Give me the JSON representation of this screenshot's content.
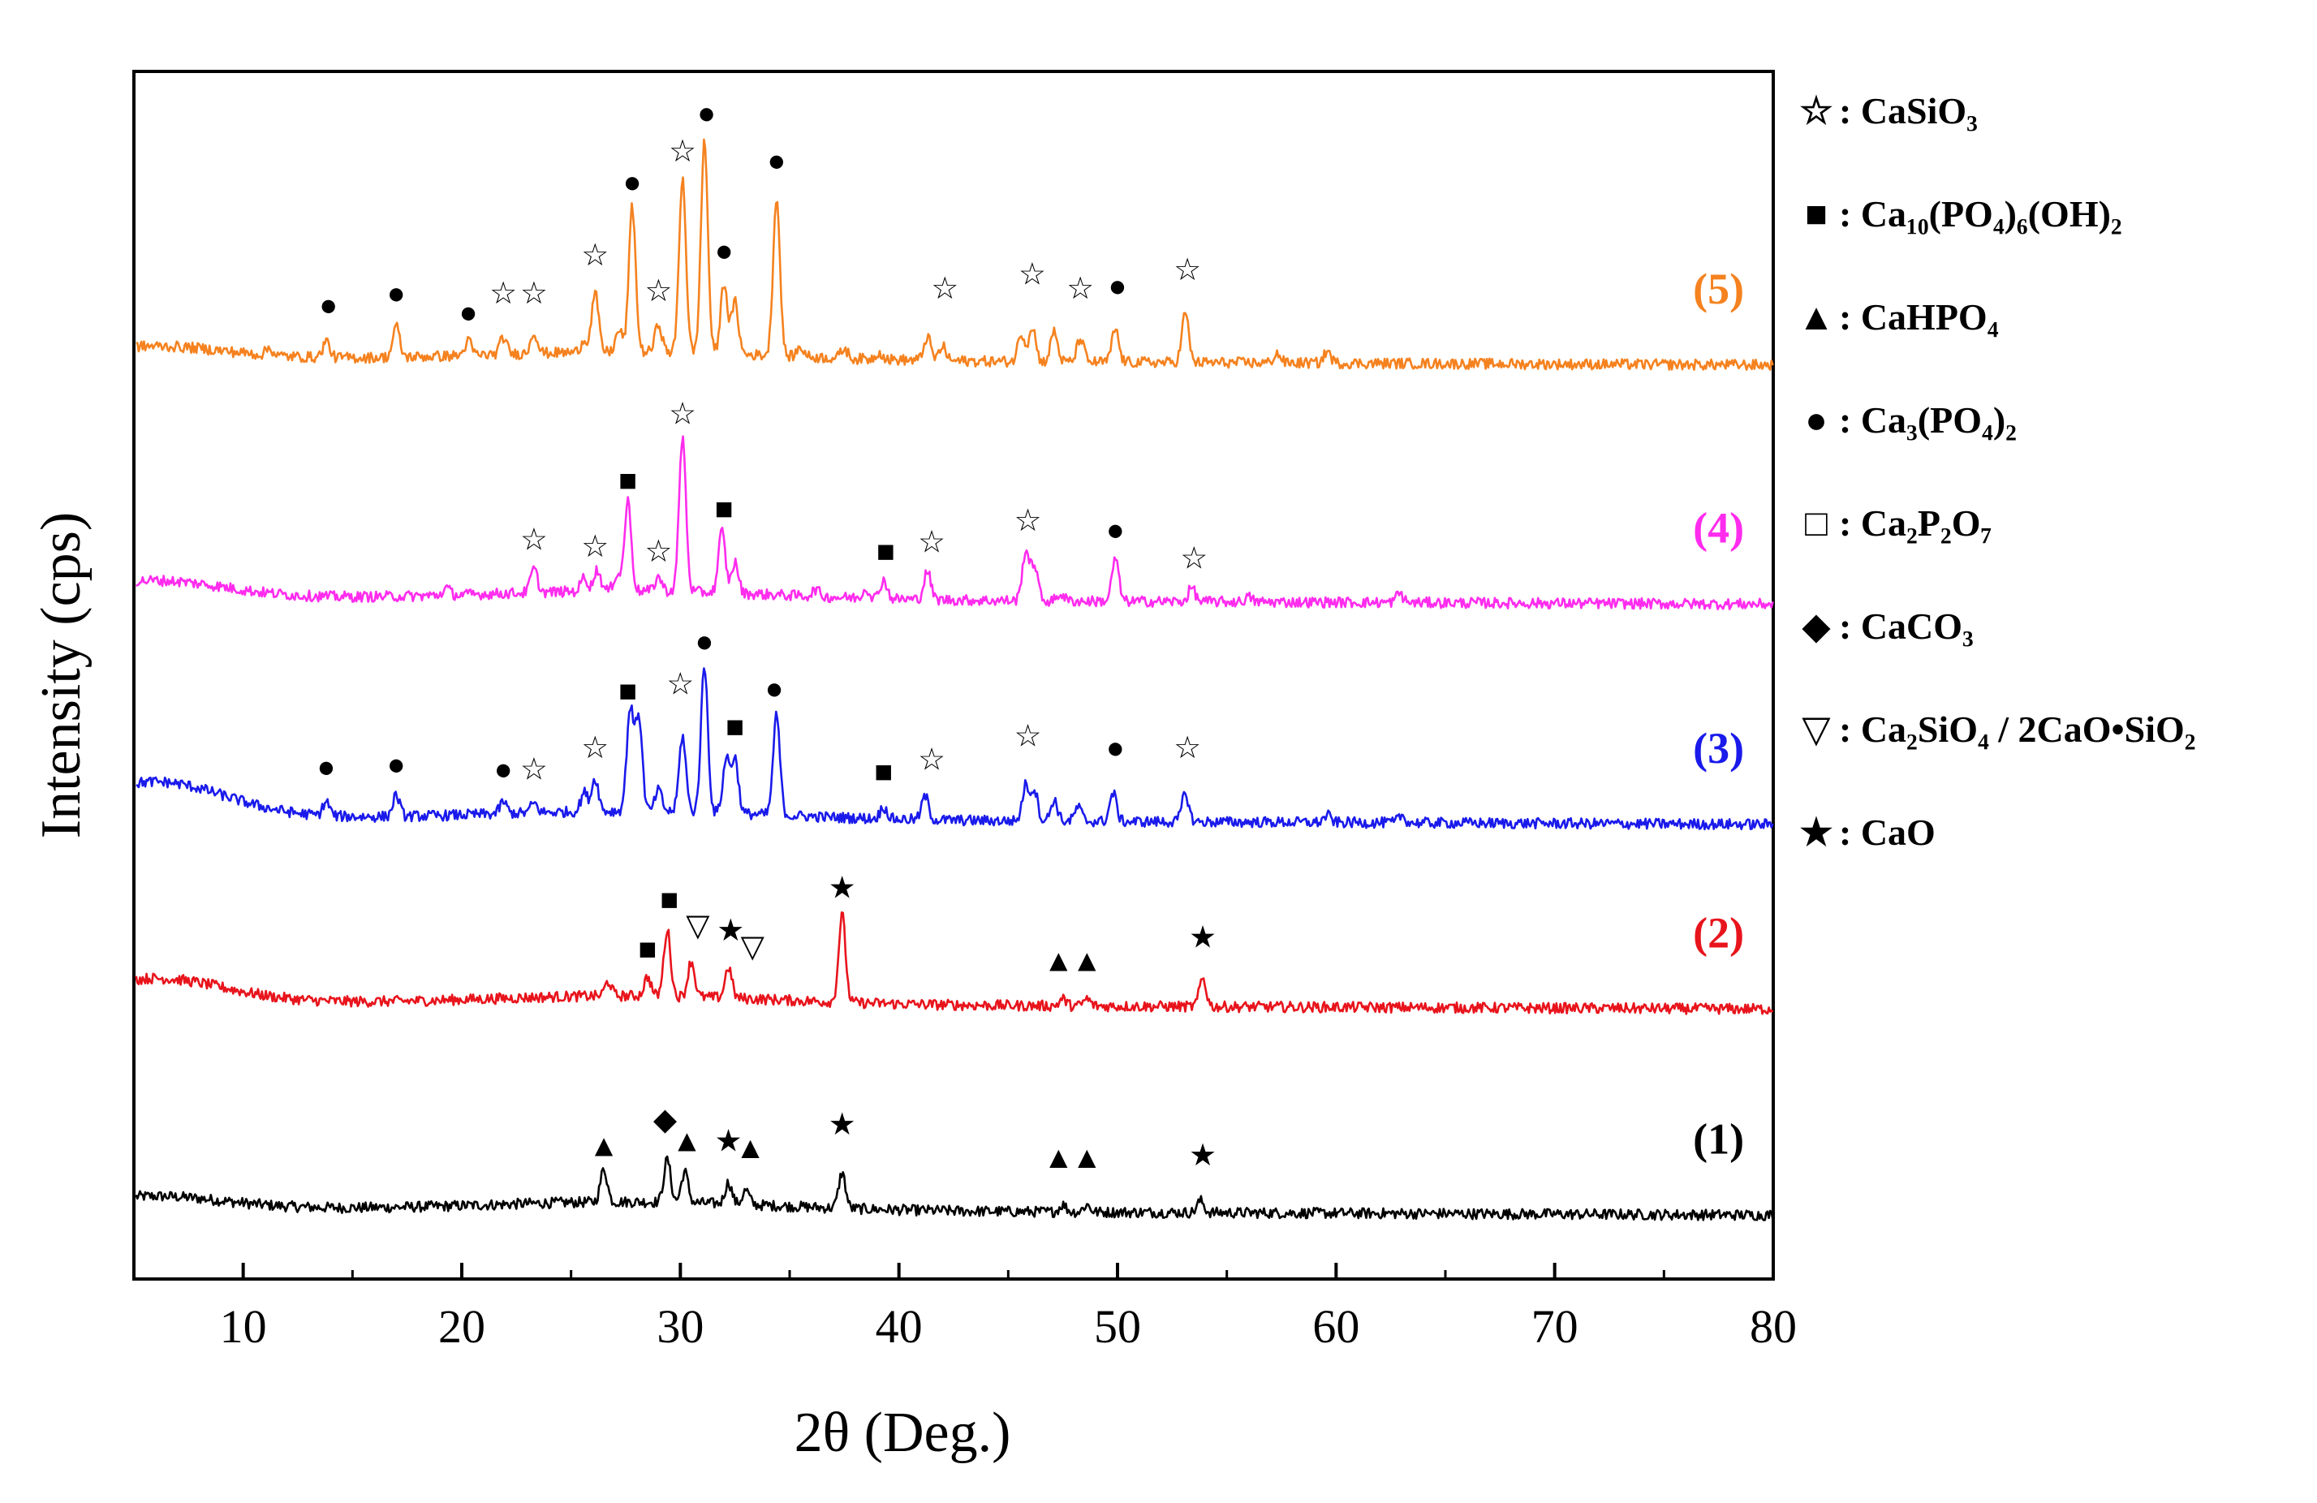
{
  "chart_data": {
    "type": "line",
    "title": "",
    "xlabel": "2θ (Deg.)",
    "ylabel": "Intensity (cps)",
    "xlim": [
      5,
      80
    ],
    "xticks": [
      10,
      20,
      30,
      40,
      50,
      60,
      70,
      80
    ],
    "grid": false,
    "y_ticks_shown": false,
    "legend_position": "right, outside plot",
    "series": [
      {
        "name": "(1)",
        "color": "#000000",
        "baseline": 0.0,
        "start_offset": 0.5,
        "peaks": [
          [
            26.5,
            1.4
          ],
          [
            29.4,
            1.8
          ],
          [
            30.2,
            1.3
          ],
          [
            32.2,
            0.9
          ],
          [
            33.0,
            0.6
          ],
          [
            37.4,
            1.5
          ],
          [
            47.5,
            0.3
          ],
          [
            48.6,
            0.3
          ],
          [
            53.8,
            0.5
          ]
        ],
        "markers": [
          {
            "symbol": "triangle",
            "x": 26.5,
            "h": 2.2
          },
          {
            "symbol": "diamond",
            "x": 29.3,
            "h": 3.3
          },
          {
            "symbol": "triangle",
            "x": 30.3,
            "h": 2.4
          },
          {
            "symbol": "star",
            "x": 32.2,
            "h": 2.4
          },
          {
            "symbol": "triangle",
            "x": 33.2,
            "h": 2.1
          },
          {
            "symbol": "star",
            "x": 37.4,
            "h": 3.1
          },
          {
            "symbol": "triangle",
            "x": 47.3,
            "h": 1.7
          },
          {
            "symbol": "triangle",
            "x": 48.6,
            "h": 1.7
          },
          {
            "symbol": "star",
            "x": 53.9,
            "h": 1.8
          }
        ]
      },
      {
        "name": "(2)",
        "color": "#e8141c",
        "baseline": 8.7,
        "start_offset": 1.0,
        "peaks": [
          [
            26.7,
            0.6
          ],
          [
            28.5,
            0.8
          ],
          [
            29.4,
            2.8
          ],
          [
            30.5,
            1.5
          ],
          [
            32.2,
            1.3
          ],
          [
            37.4,
            3.7
          ],
          [
            47.5,
            0.3
          ],
          [
            48.6,
            0.3
          ],
          [
            53.9,
            1.2
          ]
        ],
        "markers": [
          {
            "symbol": "square",
            "x": 28.5,
            "h": 1.8
          },
          {
            "symbol": "square",
            "x": 29.5,
            "h": 3.9
          },
          {
            "symbol": "triangle-down",
            "x": 30.8,
            "h": 2.8
          },
          {
            "symbol": "star",
            "x": 32.3,
            "h": 2.6
          },
          {
            "symbol": "triangle-down",
            "x": 33.3,
            "h": 1.9
          },
          {
            "symbol": "star",
            "x": 37.4,
            "h": 4.4
          },
          {
            "symbol": "triangle",
            "x": 47.3,
            "h": 1.3
          },
          {
            "symbol": "triangle",
            "x": 48.6,
            "h": 1.3
          },
          {
            "symbol": "star",
            "x": 53.9,
            "h": 2.3
          }
        ]
      },
      {
        "name": "(3)",
        "color": "#1a1aeb",
        "baseline": 16.5,
        "start_offset": 1.5,
        "peaks": [
          [
            13.8,
            0.6
          ],
          [
            17.0,
            0.9
          ],
          [
            21.9,
            0.5
          ],
          [
            23.3,
            0.4
          ],
          [
            25.6,
            0.8
          ],
          [
            26.1,
            1.4
          ],
          [
            27.7,
            4.3
          ],
          [
            28.1,
            4.0
          ],
          [
            29.0,
            0.9
          ],
          [
            30.1,
            3.2
          ],
          [
            31.1,
            6.2
          ],
          [
            32.1,
            2.3
          ],
          [
            32.5,
            2.3
          ],
          [
            34.4,
            4.2
          ],
          [
            39.3,
            0.5
          ],
          [
            41.2,
            1.0
          ],
          [
            45.8,
            1.5
          ],
          [
            46.2,
            1.3
          ],
          [
            47.1,
            0.9
          ],
          [
            48.2,
            0.6
          ],
          [
            49.8,
            1.2
          ],
          [
            53.1,
            1.2
          ],
          [
            59.6,
            0.3
          ],
          [
            63.0,
            0.3
          ]
        ],
        "markers": [
          {
            "symbol": "circle",
            "x": 13.8,
            "h": 1.7
          },
          {
            "symbol": "circle",
            "x": 17.0,
            "h": 1.8
          },
          {
            "symbol": "circle",
            "x": 21.9,
            "h": 1.6
          },
          {
            "symbol": "star-open",
            "x": 23.3,
            "h": 1.6
          },
          {
            "symbol": "star-open",
            "x": 26.1,
            "h": 2.5
          },
          {
            "symbol": "square",
            "x": 27.6,
            "h": 4.9
          },
          {
            "symbol": "star-open",
            "x": 30.0,
            "h": 5.2
          },
          {
            "symbol": "circle",
            "x": 31.1,
            "h": 7.0
          },
          {
            "symbol": "square",
            "x": 32.5,
            "h": 3.4
          },
          {
            "symbol": "circle",
            "x": 34.3,
            "h": 5.0
          },
          {
            "symbol": "square",
            "x": 39.3,
            "h": 1.5
          },
          {
            "symbol": "star-open",
            "x": 41.5,
            "h": 2.0
          },
          {
            "symbol": "star-open",
            "x": 45.9,
            "h": 3.0
          },
          {
            "symbol": "circle",
            "x": 49.9,
            "h": 2.5
          },
          {
            "symbol": "star-open",
            "x": 53.2,
            "h": 2.5
          }
        ]
      },
      {
        "name": "(4)",
        "color": "#ff2cee",
        "baseline": 25.8,
        "start_offset": 0.7,
        "peaks": [
          [
            19.3,
            0.3
          ],
          [
            23.3,
            1.0
          ],
          [
            25.6,
            0.6
          ],
          [
            26.2,
            0.9
          ],
          [
            27.1,
            0.7
          ],
          [
            27.6,
            3.8
          ],
          [
            29.0,
            0.6
          ],
          [
            30.1,
            6.5
          ],
          [
            31.9,
            2.6
          ],
          [
            32.5,
            1.3
          ],
          [
            36.2,
            0.3
          ],
          [
            38.5,
            0.4
          ],
          [
            39.3,
            0.8
          ],
          [
            41.3,
            1.2
          ],
          [
            45.8,
            2.1
          ],
          [
            46.2,
            1.5
          ],
          [
            47.4,
            0.3
          ],
          [
            49.9,
            1.8
          ],
          [
            53.4,
            0.6
          ],
          [
            56.0,
            0.2
          ],
          [
            62.9,
            0.4
          ]
        ],
        "markers": [
          {
            "symbol": "star-open",
            "x": 23.3,
            "h": 2.0
          },
          {
            "symbol": "star-open",
            "x": 26.1,
            "h": 1.7
          },
          {
            "symbol": "square",
            "x": 27.6,
            "h": 4.5
          },
          {
            "symbol": "star-open",
            "x": 29.0,
            "h": 1.5
          },
          {
            "symbol": "star-open",
            "x": 30.1,
            "h": 7.3
          },
          {
            "symbol": "square",
            "x": 32.0,
            "h": 3.3
          },
          {
            "symbol": "square",
            "x": 39.4,
            "h": 1.5
          },
          {
            "symbol": "star-open",
            "x": 41.5,
            "h": 1.9
          },
          {
            "symbol": "star-open",
            "x": 45.9,
            "h": 2.8
          },
          {
            "symbol": "circle",
            "x": 49.9,
            "h": 2.4
          },
          {
            "symbol": "star-open",
            "x": 53.5,
            "h": 1.2
          }
        ]
      },
      {
        "name": "(5)",
        "color": "#f5821f",
        "baseline": 35.9,
        "start_offset": 0.5,
        "peaks": [
          [
            11.2,
            0.3
          ],
          [
            13.8,
            0.7
          ],
          [
            17.0,
            1.3
          ],
          [
            20.3,
            0.6
          ],
          [
            21.9,
            0.7
          ],
          [
            23.3,
            0.9
          ],
          [
            25.6,
            0.5
          ],
          [
            26.1,
            2.5
          ],
          [
            27.2,
            0.9
          ],
          [
            27.8,
            6.1
          ],
          [
            29.0,
            1.2
          ],
          [
            30.1,
            7.4
          ],
          [
            31.1,
            9.0
          ],
          [
            32.0,
            3.0
          ],
          [
            32.5,
            2.2
          ],
          [
            34.4,
            6.7
          ],
          [
            35.5,
            0.4
          ],
          [
            37.5,
            0.4
          ],
          [
            39.1,
            0.3
          ],
          [
            41.3,
            1.0
          ],
          [
            42.0,
            0.6
          ],
          [
            45.6,
            1.2
          ],
          [
            46.1,
            1.5
          ],
          [
            47.1,
            1.3
          ],
          [
            48.3,
            1.0
          ],
          [
            49.9,
            1.4
          ],
          [
            53.1,
            2.1
          ],
          [
            57.3,
            0.4
          ],
          [
            59.6,
            0.5
          ]
        ],
        "markers": [
          {
            "symbol": "circle",
            "x": 13.9,
            "h": 1.8
          },
          {
            "symbol": "circle",
            "x": 17.0,
            "h": 2.3
          },
          {
            "symbol": "circle",
            "x": 20.3,
            "h": 1.5
          },
          {
            "symbol": "star-open",
            "x": 21.9,
            "h": 2.3
          },
          {
            "symbol": "star-open",
            "x": 23.3,
            "h": 2.3
          },
          {
            "symbol": "star-open",
            "x": 26.1,
            "h": 3.9
          },
          {
            "symbol": "circle",
            "x": 27.8,
            "h": 7.0
          },
          {
            "symbol": "star-open",
            "x": 29.0,
            "h": 2.4
          },
          {
            "symbol": "star-open",
            "x": 30.1,
            "h": 8.3
          },
          {
            "symbol": "circle",
            "x": 31.2,
            "h": 9.9
          },
          {
            "symbol": "circle",
            "x": 32.0,
            "h": 4.1
          },
          {
            "symbol": "circle",
            "x": 34.4,
            "h": 7.9
          },
          {
            "symbol": "star-open",
            "x": 42.1,
            "h": 2.5
          },
          {
            "symbol": "star-open",
            "x": 46.1,
            "h": 3.1
          },
          {
            "symbol": "star-open",
            "x": 48.3,
            "h": 2.5
          },
          {
            "symbol": "circle",
            "x": 50.0,
            "h": 2.6
          },
          {
            "symbol": "star-open",
            "x": 53.2,
            "h": 3.3
          }
        ]
      }
    ],
    "legend": [
      {
        "symbol": "star-open",
        "label": ": CaSiO₃"
      },
      {
        "symbol": "square",
        "label": ": Ca₁₀(PO₄)₆(OH)₂"
      },
      {
        "symbol": "triangle",
        "label": ": CaHPO₄"
      },
      {
        "symbol": "circle",
        "label": ": Ca₃(PO₄)₂"
      },
      {
        "symbol": "square-open",
        "label": ": Ca₂P₂O₇"
      },
      {
        "symbol": "diamond",
        "label": ": CaCO₃"
      },
      {
        "symbol": "triangle-down",
        "label": ": Ca₂SiO₄ / 2CaO•SiO₂"
      },
      {
        "symbol": "star",
        "label": ": CaO"
      }
    ]
  },
  "symbols": {
    "star-open": "☆",
    "star": "★",
    "square": "■",
    "square-open": "□",
    "triangle": "▲",
    "triangle-down": "▽",
    "circle": "●",
    "diamond": "◆"
  }
}
